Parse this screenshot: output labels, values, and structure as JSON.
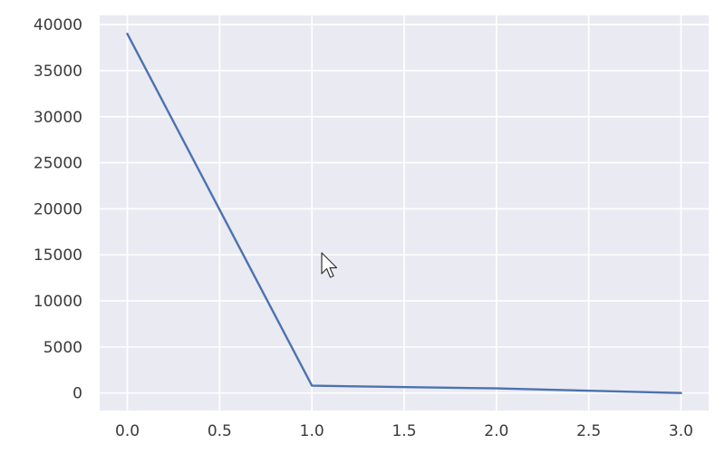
{
  "chart_data": {
    "type": "line",
    "title": "",
    "xlabel": "",
    "ylabel": "",
    "x": [
      0,
      1,
      2,
      3
    ],
    "series": [
      {
        "values": [
          39000,
          800,
          500,
          0
        ],
        "color": "#4c72b0"
      }
    ],
    "xlim": [
      -0.15,
      3.15
    ],
    "ylim": [
      -1900,
      41000
    ],
    "xticks": [
      0.0,
      0.5,
      1.0,
      1.5,
      2.0,
      2.5,
      3.0
    ],
    "xtick_labels": [
      "0.0",
      "0.5",
      "1.0",
      "1.5",
      "2.0",
      "2.5",
      "3.0"
    ],
    "yticks": [
      0,
      5000,
      10000,
      15000,
      20000,
      25000,
      30000,
      35000,
      40000
    ],
    "ytick_labels": [
      "0",
      "5000",
      "10000",
      "15000",
      "20000",
      "25000",
      "30000",
      "35000",
      "40000"
    ],
    "grid": true,
    "background_color": "#eaeaf2",
    "grid_color": "#ffffff",
    "legend": "none"
  },
  "overlay": {
    "cursor_icon": "mouse-pointer-arrow"
  }
}
